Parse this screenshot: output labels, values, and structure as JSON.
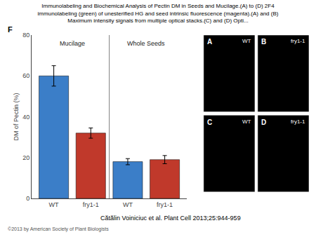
{
  "chart_data": {
    "type": "bar",
    "title": "Immunolabeling and Biochemical Analysis of Pectin DM in Seeds and Mucilage.(A) to (D) 2F4\nimmunolabeling (green) of unesterified HG and seed intrinsic fluorescence (magenta).(A) and (B)\nMaximum intensity signals from multiple optical stacks.(C) and (D) Opti...",
    "categories": [
      "WT",
      "fry1-1",
      "WT",
      "fry1-1"
    ],
    "values": [
      60,
      32,
      18,
      19
    ],
    "errors": [
      5.0,
      2.5,
      1.5,
      2.0
    ],
    "colors": [
      "#3b7ec8",
      "#c0392b",
      "#3b7ec8",
      "#c0392b"
    ],
    "ylabel": "DM of Pectin (%)",
    "ylim": [
      0,
      80
    ],
    "yticks": [
      0,
      20,
      40,
      60,
      80
    ],
    "grid": false,
    "annotations": {
      "groups": [
        "Mucilage",
        "Whole Seeds"
      ],
      "panel_label": "F",
      "citation": "Cătălin Voiniciuc et al. Plant Cell 2013;25:944-959",
      "copyright": "©2013 by American Society of Plant Biologists",
      "panels": [
        {
          "label": "A",
          "sublabel": "WT"
        },
        {
          "label": "B",
          "sublabel": "fry1-1"
        },
        {
          "label": "C",
          "sublabel": "WT"
        },
        {
          "label": "D",
          "sublabel": "fry1-1"
        }
      ]
    }
  }
}
